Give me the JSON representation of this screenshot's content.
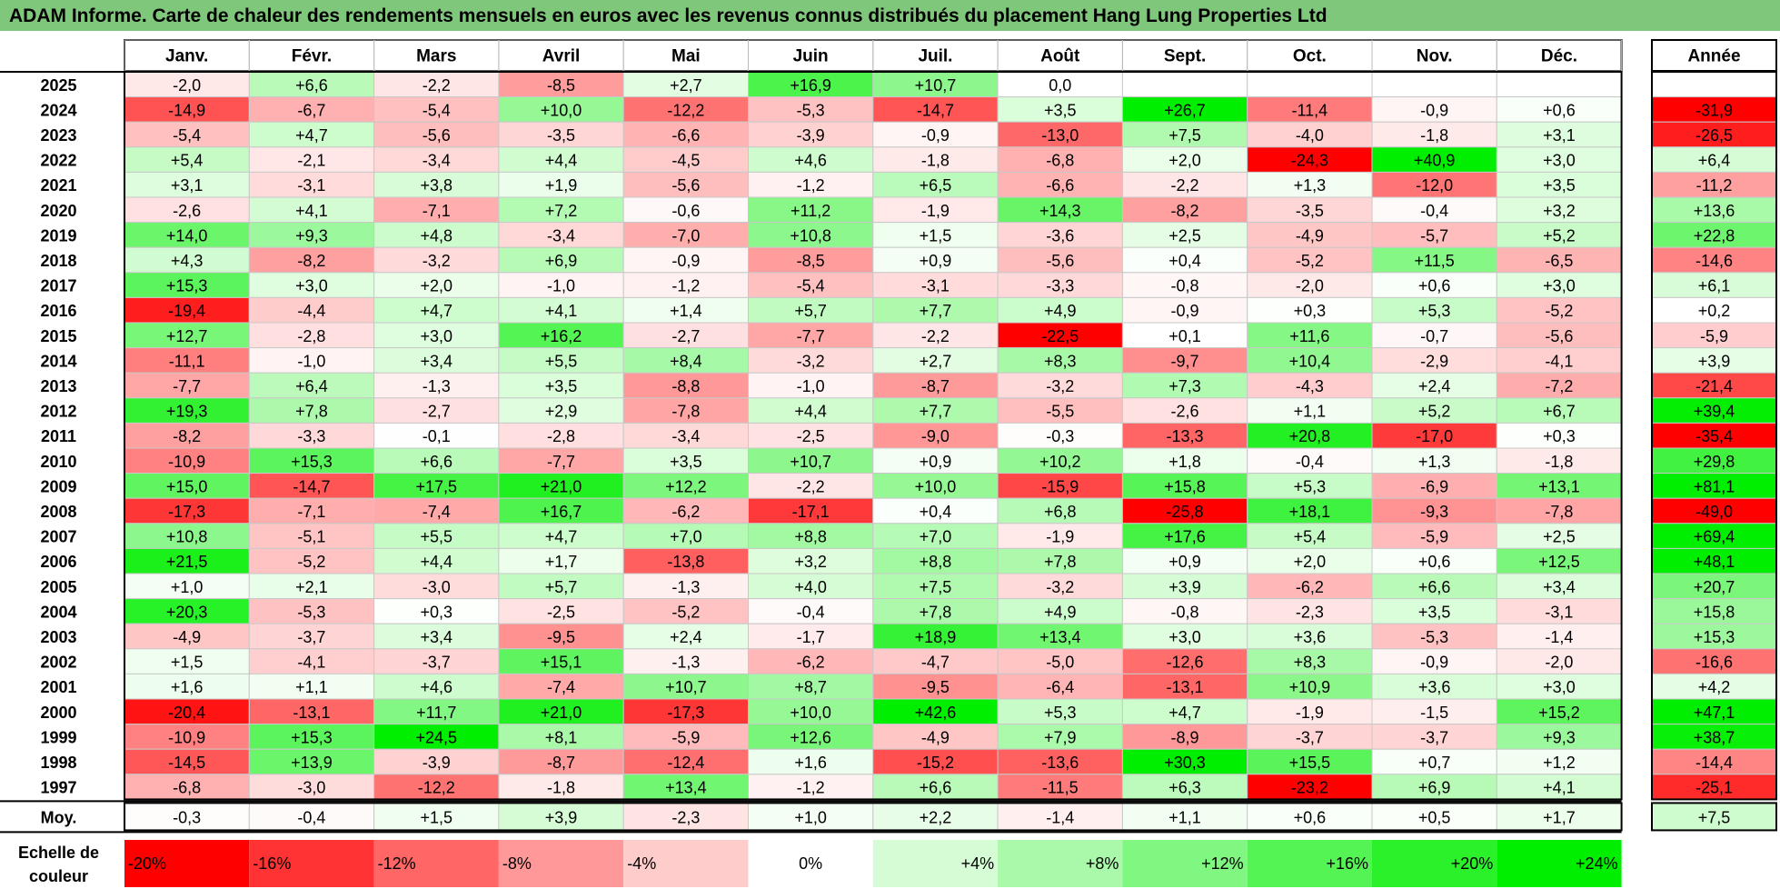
{
  "title": "ADAM Informe. Carte de chaleur des rendements mensuels en euros avec les revenus connus distribués du placement Hang Lung Properties Ltd",
  "chart_data": {
    "type": "heatmap",
    "months": [
      "Janv.",
      "Févr.",
      "Mars",
      "Avril",
      "Mai",
      "Juin",
      "Juil.",
      "Août",
      "Sept.",
      "Oct.",
      "Nov.",
      "Déc."
    ],
    "annual_label": "Année",
    "rows": [
      {
        "year": "2025",
        "values": [
          -2.0,
          6.6,
          -2.2,
          -8.5,
          2.7,
          16.9,
          10.7,
          0.0,
          null,
          null,
          null,
          null
        ],
        "annual": null
      },
      {
        "year": "2024",
        "values": [
          -14.9,
          -6.7,
          -5.4,
          10.0,
          -12.2,
          -5.3,
          -14.7,
          3.5,
          26.7,
          -11.4,
          -0.9,
          0.6
        ],
        "annual": -31.9
      },
      {
        "year": "2023",
        "values": [
          -5.4,
          4.7,
          -5.6,
          -3.5,
          -6.6,
          -3.9,
          -0.9,
          -13.0,
          7.5,
          -4.0,
          -1.8,
          3.1
        ],
        "annual": -26.5
      },
      {
        "year": "2022",
        "values": [
          5.4,
          -2.1,
          -3.4,
          4.4,
          -4.5,
          4.6,
          -1.8,
          -6.8,
          2.0,
          -24.3,
          40.9,
          3.0
        ],
        "annual": 6.4
      },
      {
        "year": "2021",
        "values": [
          3.1,
          -3.1,
          3.8,
          1.9,
          -5.6,
          -1.2,
          6.5,
          -6.6,
          -2.2,
          1.3,
          -12.0,
          3.5
        ],
        "annual": -11.2
      },
      {
        "year": "2020",
        "values": [
          -2.6,
          4.1,
          -7.1,
          7.2,
          -0.6,
          11.2,
          -1.9,
          14.3,
          -8.2,
          -3.5,
          -0.4,
          3.2
        ],
        "annual": 13.6
      },
      {
        "year": "2019",
        "values": [
          14.0,
          9.3,
          4.8,
          -3.4,
          -7.0,
          10.8,
          1.5,
          -3.6,
          2.5,
          -4.9,
          -5.7,
          5.2
        ],
        "annual": 22.8
      },
      {
        "year": "2018",
        "values": [
          4.3,
          -8.2,
          -3.2,
          6.9,
          -0.9,
          -8.5,
          0.9,
          -5.6,
          0.4,
          -5.2,
          11.5,
          -6.5
        ],
        "annual": -14.6
      },
      {
        "year": "2017",
        "values": [
          15.3,
          3.0,
          2.0,
          -1.0,
          -1.2,
          -5.4,
          -3.1,
          -3.3,
          -0.8,
          -2.0,
          0.6,
          3.0
        ],
        "annual": 6.1
      },
      {
        "year": "2016",
        "values": [
          -19.4,
          -4.4,
          4.7,
          4.1,
          1.4,
          5.7,
          7.7,
          4.9,
          -0.9,
          0.3,
          5.3,
          -5.2
        ],
        "annual": 0.2
      },
      {
        "year": "2015",
        "values": [
          12.7,
          -2.8,
          3.0,
          16.2,
          -2.7,
          -7.7,
          -2.2,
          -22.5,
          0.1,
          11.6,
          -0.7,
          -5.6
        ],
        "annual": -5.9
      },
      {
        "year": "2014",
        "values": [
          -11.1,
          -1.0,
          3.4,
          5.5,
          8.4,
          -3.2,
          2.7,
          8.3,
          -9.7,
          10.4,
          -2.9,
          -4.1
        ],
        "annual": 3.9
      },
      {
        "year": "2013",
        "values": [
          -7.7,
          6.4,
          -1.3,
          3.5,
          -8.8,
          -1.0,
          -8.7,
          -3.2,
          7.3,
          -4.3,
          2.4,
          -7.2
        ],
        "annual": -21.4
      },
      {
        "year": "2012",
        "values": [
          19.3,
          7.8,
          -2.7,
          2.9,
          -7.8,
          4.4,
          7.7,
          -5.5,
          -2.6,
          1.1,
          5.2,
          6.7
        ],
        "annual": 39.4
      },
      {
        "year": "2011",
        "values": [
          -8.2,
          -3.3,
          -0.1,
          -2.8,
          -3.4,
          -2.5,
          -9.0,
          -0.3,
          -13.3,
          20.8,
          -17.0,
          0.3
        ],
        "annual": -35.4
      },
      {
        "year": "2010",
        "values": [
          -10.9,
          15.3,
          6.6,
          -7.7,
          3.5,
          10.7,
          0.9,
          10.2,
          1.8,
          -0.4,
          1.3,
          -1.8
        ],
        "annual": 29.8
      },
      {
        "year": "2009",
        "values": [
          15.0,
          -14.7,
          17.5,
          21.0,
          12.2,
          -2.2,
          10.0,
          -15.9,
          15.8,
          5.3,
          -6.9,
          13.1
        ],
        "annual": 81.1
      },
      {
        "year": "2008",
        "values": [
          -17.3,
          -7.1,
          -7.4,
          16.7,
          -6.2,
          -17.1,
          0.4,
          6.8,
          -25.8,
          18.1,
          -9.3,
          -7.8
        ],
        "annual": -49.0
      },
      {
        "year": "2007",
        "values": [
          10.8,
          -5.1,
          5.5,
          4.7,
          7.0,
          8.8,
          7.0,
          -1.9,
          17.6,
          5.4,
          -5.9,
          2.5
        ],
        "annual": 69.4
      },
      {
        "year": "2006",
        "values": [
          21.5,
          -5.2,
          4.4,
          1.7,
          -13.8,
          3.2,
          8.8,
          7.8,
          0.9,
          2.0,
          0.6,
          12.5
        ],
        "annual": 48.1
      },
      {
        "year": "2005",
        "values": [
          1.0,
          2.1,
          -3.0,
          5.7,
          -1.3,
          4.0,
          7.5,
          -3.2,
          3.9,
          -6.2,
          6.6,
          3.4
        ],
        "annual": 20.7
      },
      {
        "year": "2004",
        "values": [
          20.3,
          -5.3,
          0.3,
          -2.5,
          -5.2,
          -0.4,
          7.8,
          4.9,
          -0.8,
          -2.3,
          3.5,
          -3.1
        ],
        "annual": 15.8
      },
      {
        "year": "2003",
        "values": [
          -4.9,
          -3.7,
          3.4,
          -9.5,
          2.4,
          -1.7,
          18.9,
          13.4,
          3.0,
          3.6,
          -5.3,
          -1.4
        ],
        "annual": 15.3
      },
      {
        "year": "2002",
        "values": [
          1.5,
          -4.1,
          -3.7,
          15.1,
          -1.3,
          -6.2,
          -4.7,
          -5.0,
          -12.6,
          8.3,
          -0.9,
          -2.0
        ],
        "annual": -16.6
      },
      {
        "year": "2001",
        "values": [
          1.6,
          1.1,
          4.6,
          -7.4,
          10.7,
          8.7,
          -9.5,
          -6.4,
          -13.1,
          10.9,
          3.6,
          3.0
        ],
        "annual": 4.2
      },
      {
        "year": "2000",
        "values": [
          -20.4,
          -13.1,
          11.7,
          21.0,
          -17.3,
          10.0,
          42.6,
          5.3,
          4.7,
          -1.9,
          -1.5,
          15.2
        ],
        "annual": 47.1
      },
      {
        "year": "1999",
        "values": [
          -10.9,
          15.3,
          24.5,
          8.1,
          -5.9,
          12.6,
          -4.9,
          7.9,
          -8.9,
          -3.7,
          -3.7,
          9.3
        ],
        "annual": 38.7
      },
      {
        "year": "1998",
        "values": [
          -14.5,
          13.9,
          -3.9,
          -8.7,
          -12.4,
          1.6,
          -15.2,
          -13.6,
          30.3,
          15.5,
          0.7,
          1.2
        ],
        "annual": -14.4
      },
      {
        "year": "1997",
        "values": [
          -6.8,
          -3.0,
          -12.2,
          -1.8,
          13.4,
          -1.2,
          6.6,
          -11.5,
          6.3,
          -23.2,
          6.9,
          4.1
        ],
        "annual": -25.1
      }
    ],
    "average": {
      "label": "Moy.",
      "values": [
        -0.3,
        -0.4,
        1.5,
        3.9,
        -2.3,
        1.0,
        2.2,
        -1.4,
        1.1,
        0.6,
        0.5,
        1.7
      ],
      "annual": 7.5
    },
    "scale": {
      "label_line1": "Echelle de",
      "label_line2": "couleur",
      "steps": [
        "-20%",
        "-16%",
        "-12%",
        "-8%",
        "-4%",
        "0%",
        "+4%",
        "+8%",
        "+12%",
        "+16%",
        "+20%",
        "+24%"
      ],
      "step_values": [
        -20,
        -16,
        -12,
        -8,
        -4,
        0,
        4,
        8,
        12,
        16,
        20,
        24
      ]
    },
    "colors": {
      "negative_max": "#ff0000",
      "neutral": "#ffffff",
      "positive_max": "#00ee00",
      "title_bar": "#7fc77a"
    }
  }
}
